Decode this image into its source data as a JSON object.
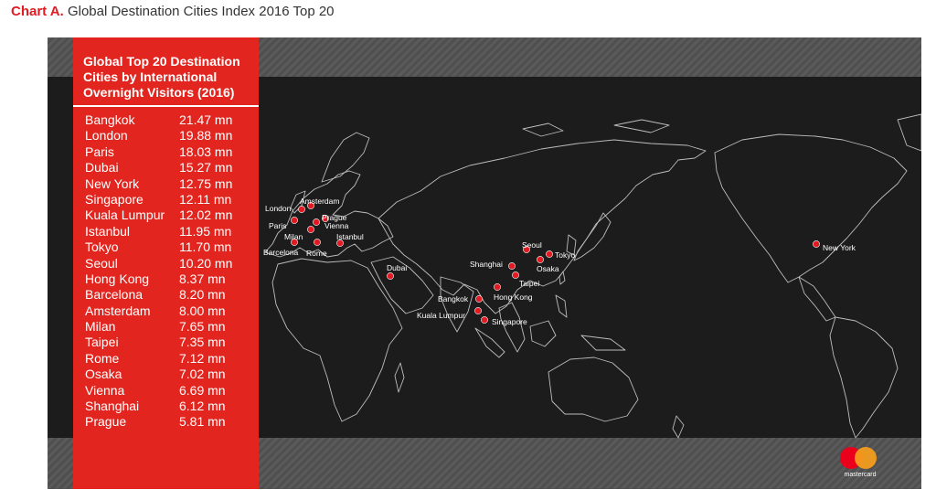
{
  "header": {
    "title_lead": "Chart A.",
    "title_rest": " Global Destination Cities Index 2016 Top 20"
  },
  "panel": {
    "title": "Global Top 20 Destination Cities by International Overnight Visitors (2016)",
    "rows": [
      {
        "city": "Bangkok",
        "value": "21.47 mn"
      },
      {
        "city": "London",
        "value": "19.88 mn"
      },
      {
        "city": "Paris",
        "value": "18.03 mn"
      },
      {
        "city": "Dubai",
        "value": "15.27 mn"
      },
      {
        "city": "New York",
        "value": "12.75 mn"
      },
      {
        "city": "Singapore",
        "value": "12.11 mn"
      },
      {
        "city": "Kuala Lumpur",
        "value": "12.02 mn"
      },
      {
        "city": "Istanbul",
        "value": "11.95 mn"
      },
      {
        "city": "Tokyo",
        "value": "11.70 mn"
      },
      {
        "city": "Seoul",
        "value": "10.20 mn"
      },
      {
        "city": "Hong Kong",
        "value": "8.37 mn"
      },
      {
        "city": "Barcelona",
        "value": "8.20 mn"
      },
      {
        "city": "Amsterdam",
        "value": "8.00 mn"
      },
      {
        "city": "Milan",
        "value": "7.65 mn"
      },
      {
        "city": "Taipei",
        "value": "7.35 mn"
      },
      {
        "city": "Rome",
        "value": "7.12 mn"
      },
      {
        "city": "Osaka",
        "value": "7.02 mn"
      },
      {
        "city": "Vienna",
        "value": "6.69 mn"
      },
      {
        "city": "Shanghai",
        "value": "6.12 mn"
      },
      {
        "city": "Prague",
        "value": "5.81 mn"
      }
    ]
  },
  "map": {
    "marker_color": "#e21b23",
    "land_stroke": "#bfbfbf",
    "background": "#1c1c1c",
    "labels": [
      "London",
      "Amsterdam",
      "Prague",
      "Vienna",
      "Paris",
      "Milan",
      "Istanbul",
      "Barcelona",
      "Rome",
      "Dubai",
      "Seoul",
      "Tokyo",
      "Shanghai",
      "Osaka",
      "Taipei",
      "Hong Kong",
      "Bangkok",
      "Kuala Lumpur",
      "Singapore",
      "New York"
    ]
  },
  "logo": {
    "text": "mastercard",
    "red": "#eb001b",
    "yellow": "#f79e1b"
  }
}
